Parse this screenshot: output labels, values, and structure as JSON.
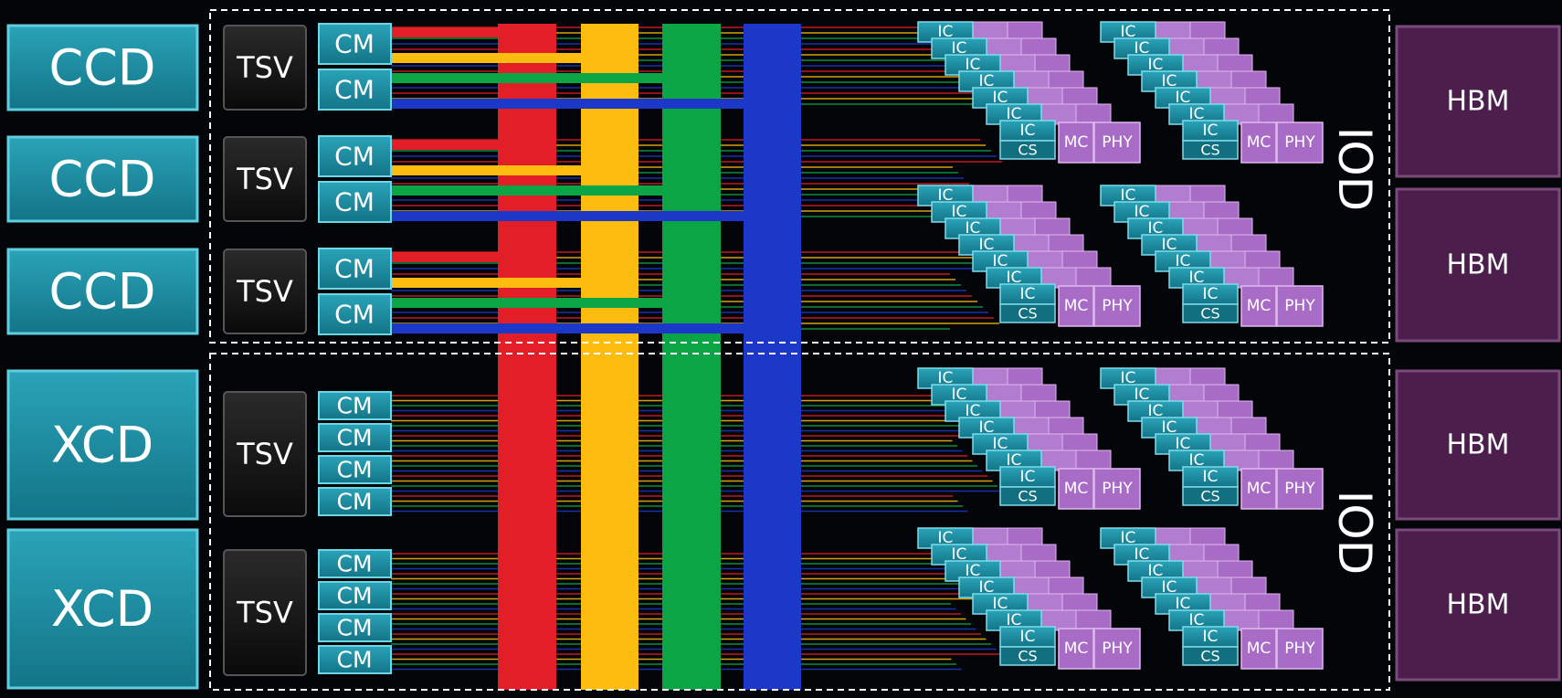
{
  "compute_dies": [
    {
      "label": "CCD",
      "tsv": "TSV",
      "cms": [
        "CM",
        "CM"
      ]
    },
    {
      "label": "CCD",
      "tsv": "TSV",
      "cms": [
        "CM",
        "CM"
      ]
    },
    {
      "label": "CCD",
      "tsv": "TSV",
      "cms": [
        "CM",
        "CM"
      ]
    },
    {
      "label": "XCD",
      "tsv": "TSV",
      "cms": [
        "CM",
        "CM",
        "CM",
        "CM"
      ]
    },
    {
      "label": "XCD",
      "tsv": "TSV",
      "cms": [
        "CM",
        "CM",
        "CM",
        "CM"
      ]
    }
  ],
  "iods": [
    {
      "label": "IOD",
      "stacks": [
        {
          "ic": [
            "IC",
            "IC",
            "IC",
            "IC",
            "IC",
            "IC",
            "IC"
          ],
          "cs": "CS",
          "mc": "MC",
          "phy": "PHY"
        },
        {
          "ic": [
            "IC",
            "IC",
            "IC",
            "IC",
            "IC",
            "IC",
            "IC"
          ],
          "cs": "CS",
          "mc": "MC",
          "phy": "PHY"
        },
        {
          "ic": [
            "IC",
            "IC",
            "IC",
            "IC",
            "IC",
            "IC",
            "IC"
          ],
          "cs": "CS",
          "mc": "MC",
          "phy": "PHY"
        },
        {
          "ic": [
            "IC",
            "IC",
            "IC",
            "IC",
            "IC",
            "IC",
            "IC"
          ],
          "cs": "CS",
          "mc": "MC",
          "phy": "PHY"
        }
      ]
    },
    {
      "label": "IOD",
      "stacks": [
        {
          "ic": [
            "IC",
            "IC",
            "IC",
            "IC",
            "IC",
            "IC",
            "IC"
          ],
          "cs": "CS",
          "mc": "MC",
          "phy": "PHY"
        },
        {
          "ic": [
            "IC",
            "IC",
            "IC",
            "IC",
            "IC",
            "IC",
            "IC"
          ],
          "cs": "CS",
          "mc": "MC",
          "phy": "PHY"
        },
        {
          "ic": [
            "IC",
            "IC",
            "IC",
            "IC",
            "IC",
            "IC",
            "IC"
          ],
          "cs": "CS",
          "mc": "MC",
          "phy": "PHY"
        },
        {
          "ic": [
            "IC",
            "IC",
            "IC",
            "IC",
            "IC",
            "IC",
            "IC"
          ],
          "cs": "CS",
          "mc": "MC",
          "phy": "PHY"
        }
      ]
    }
  ],
  "hbm": [
    "HBM",
    "HBM",
    "HBM",
    "HBM"
  ]
}
